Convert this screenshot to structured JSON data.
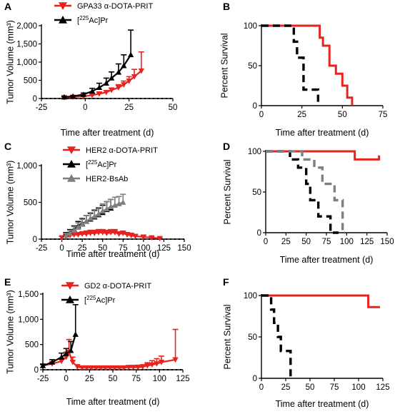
{
  "colors": {
    "red": "#e8231f",
    "black": "#000000",
    "gray": "#7f7f7f"
  },
  "chart_data": [
    {
      "panel": "A",
      "type": "line",
      "ylabel": "Tumor Volume (mm³)",
      "xlabel": "Time after treatment (d)",
      "xlim": [
        -25,
        50
      ],
      "ylim": [
        0,
        2000
      ],
      "xticks": [
        -25,
        0,
        25,
        50
      ],
      "yticks": [
        0,
        500,
        1000,
        1500,
        2000
      ],
      "ytick_labels": [
        "0",
        "500",
        "1,000",
        "1,500",
        "2,000"
      ],
      "baseline_dotted": 0,
      "legend": {
        "position": "top",
        "entries": [
          {
            "label": "GPA33 α-DOTA-PRIT",
            "color": "#e8231f",
            "marker": "triangle-down"
          },
          {
            "label": "[225Ac]Pr",
            "color": "#000000",
            "marker": "triangle-up"
          }
        ]
      },
      "series": [
        {
          "name": "GPA33 α-DOTA-PRIT",
          "color": "#e8231f",
          "marker": "triangle-down",
          "x": [
            -12,
            -7,
            -1,
            4,
            8,
            12,
            15,
            19,
            22,
            25,
            28,
            32
          ],
          "y": [
            30,
            40,
            60,
            90,
            130,
            170,
            230,
            300,
            380,
            480,
            600,
            760
          ],
          "err": [
            10,
            15,
            20,
            30,
            40,
            50,
            60,
            80,
            100,
            120,
            200,
            520
          ]
        },
        {
          "name": "[225Ac]Pr",
          "color": "#000000",
          "marker": "triangle-up",
          "x": [
            -12,
            -7,
            -1,
            4,
            8,
            12,
            15,
            19,
            22,
            26
          ],
          "y": [
            40,
            60,
            110,
            200,
            300,
            420,
            560,
            720,
            900,
            1200
          ],
          "err": [
            15,
            20,
            40,
            80,
            120,
            140,
            170,
            230,
            300,
            680
          ]
        }
      ]
    },
    {
      "panel": "B",
      "type": "step",
      "ylabel": "Percent Survival",
      "xlabel": "Time after treatment (d)",
      "xlim": [
        0,
        75
      ],
      "ylim": [
        0,
        100
      ],
      "xticks": [
        0,
        25,
        50,
        75
      ],
      "yticks": [
        0,
        50,
        100
      ],
      "series": [
        {
          "color": "#e8231f",
          "style": "solid",
          "x": [
            0,
            36,
            38,
            42,
            46,
            50,
            53,
            56
          ],
          "y": [
            100,
            85,
            75,
            50,
            40,
            25,
            10,
            0
          ]
        },
        {
          "color": "#000000",
          "style": "dashed",
          "x": [
            0,
            20,
            22,
            26,
            35
          ],
          "y": [
            100,
            80,
            60,
            20,
            0
          ]
        }
      ]
    },
    {
      "panel": "C",
      "type": "line",
      "ylabel": "Tumor Volume (mm³)",
      "xlabel": "Time after treatment (d)",
      "xlim": [
        -25,
        150
      ],
      "ylim": [
        0,
        1000
      ],
      "xticks": [
        -25,
        0,
        25,
        50,
        75,
        100,
        125,
        150
      ],
      "yticks": [
        0,
        500,
        1000
      ],
      "ytick_labels": [
        "0",
        "500",
        "1,000"
      ],
      "baseline_dotted": 0,
      "legend": {
        "position": "top",
        "entries": [
          {
            "label": "HER2 α-DOTA-PRIT",
            "color": "#e8231f",
            "marker": "triangle-down"
          },
          {
            "label": "[225Ac]Pr",
            "color": "#000000",
            "marker": "triangle-up"
          },
          {
            "label": "HER2-BsAb",
            "color": "#7f7f7f",
            "marker": "triangle-up"
          }
        ]
      },
      "series": [
        {
          "name": "HER2 α-DOTA-PRIT",
          "color": "#e8231f",
          "marker": "triangle-down",
          "x": [
            0,
            5,
            10,
            15,
            20,
            25,
            30,
            35,
            40,
            45,
            50,
            55,
            60,
            65,
            70,
            75,
            80,
            85,
            90,
            100,
            110,
            120
          ],
          "y": [
            20,
            40,
            50,
            60,
            60,
            70,
            70,
            80,
            80,
            90,
            90,
            80,
            90,
            90,
            70,
            80,
            60,
            50,
            40,
            30,
            20,
            10
          ],
          "err": [
            20,
            20,
            30,
            30,
            30,
            30,
            40,
            40,
            40,
            40,
            40,
            40,
            40,
            40,
            30,
            30,
            30,
            30,
            20,
            20,
            10,
            10
          ]
        },
        {
          "name": "[225Ac]Pr",
          "color": "#000000",
          "marker": "triangle-up",
          "x": [
            5,
            10,
            15,
            20,
            25,
            30,
            35,
            40,
            45,
            50,
            55,
            60
          ],
          "y": [
            60,
            90,
            130,
            180,
            210,
            240,
            270,
            300,
            330,
            360,
            400,
            420
          ],
          "err": [
            30,
            40,
            50,
            60,
            70,
            80,
            80,
            90,
            90,
            100,
            110,
            120
          ]
        },
        {
          "name": "HER2-BsAb",
          "color": "#7f7f7f",
          "marker": "triangle-up",
          "x": [
            5,
            10,
            15,
            20,
            25,
            30,
            35,
            40,
            45,
            50,
            55,
            60,
            65,
            70,
            75
          ],
          "y": [
            50,
            80,
            120,
            160,
            200,
            240,
            280,
            310,
            340,
            380,
            410,
            440,
            460,
            480,
            500
          ],
          "err": [
            30,
            40,
            50,
            60,
            70,
            80,
            80,
            90,
            90,
            100,
            100,
            100,
            110,
            100,
            110
          ]
        }
      ]
    },
    {
      "panel": "D",
      "type": "step",
      "ylabel": "Percent Survival",
      "xlabel": "Time after treatment (d)",
      "xlim": [
        0,
        150
      ],
      "ylim": [
        0,
        100
      ],
      "xticks": [
        0,
        25,
        50,
        75,
        100,
        125,
        150
      ],
      "yticks": [
        0,
        50,
        100
      ],
      "series": [
        {
          "color": "#e8231f",
          "style": "solid",
          "x": [
            0,
            110,
            140
          ],
          "y": [
            100,
            90,
            95
          ]
        },
        {
          "color": "#000000",
          "style": "dashed",
          "x": [
            0,
            30,
            40,
            50,
            55,
            65,
            80,
            90
          ],
          "y": [
            100,
            90,
            80,
            60,
            40,
            20,
            0,
            0
          ]
        },
        {
          "color": "#7f7f7f",
          "style": "dashed",
          "x": [
            0,
            45,
            60,
            70,
            85,
            95,
            98
          ],
          "y": [
            100,
            90,
            80,
            60,
            40,
            0,
            0
          ]
        }
      ]
    },
    {
      "panel": "E",
      "type": "line",
      "ylabel": "Tumor Volume (mm³)",
      "xlabel": "Time after treatment (d)",
      "xlim": [
        -25,
        125
      ],
      "ylim": [
        0,
        1500
      ],
      "xticks": [
        -25,
        0,
        25,
        50,
        75,
        100,
        125
      ],
      "yticks": [
        0,
        500,
        1000,
        1500
      ],
      "ytick_labels": [
        "0",
        "500",
        "1,000",
        "1,500"
      ],
      "baseline_dotted": 0,
      "legend": {
        "position": "top",
        "entries": [
          {
            "label": "GD2 α-DOTA-PRIT",
            "color": "#e8231f",
            "marker": "triangle-down"
          },
          {
            "label": "[225Ac]Pr",
            "color": "#000000",
            "marker": "triangle-up"
          }
        ]
      },
      "series": [
        {
          "name": "GD2 α-DOTA-PRIT",
          "color": "#e8231f",
          "marker": "triangle-down",
          "x": [
            -25,
            -15,
            -5,
            0,
            3,
            7,
            12,
            17,
            22,
            27,
            32,
            37,
            42,
            47,
            52,
            57,
            62,
            67,
            72,
            77,
            82,
            87,
            92,
            97,
            102,
            117
          ],
          "y": [
            80,
            120,
            170,
            250,
            350,
            150,
            60,
            40,
            40,
            40,
            40,
            40,
            40,
            40,
            40,
            40,
            40,
            50,
            50,
            50,
            60,
            80,
            100,
            120,
            150,
            200
          ],
          "err": [
            20,
            40,
            60,
            100,
            250,
            100,
            40,
            30,
            30,
            30,
            30,
            30,
            30,
            30,
            30,
            30,
            30,
            30,
            30,
            40,
            40,
            60,
            80,
            100,
            120,
            600
          ]
        },
        {
          "name": "[225Ac]Pr",
          "color": "#000000",
          "marker": "triangle-up",
          "x": [
            -25,
            -15,
            -5,
            0,
            5,
            10
          ],
          "y": [
            80,
            150,
            250,
            320,
            380,
            700
          ],
          "err": [
            30,
            50,
            80,
            100,
            180,
            590
          ]
        }
      ]
    },
    {
      "panel": "F",
      "type": "step",
      "ylabel": "Percent Survival",
      "xlabel": "Time after treatment (d)",
      "xlim": [
        0,
        125
      ],
      "ylim": [
        0,
        100
      ],
      "xticks": [
        0,
        25,
        50,
        75,
        100,
        125
      ],
      "yticks": [
        0,
        50,
        100
      ],
      "series": [
        {
          "color": "#e8231f",
          "style": "solid",
          "x": [
            0,
            110,
            122
          ],
          "y": [
            100,
            86,
            86
          ]
        },
        {
          "color": "#000000",
          "style": "dashed",
          "x": [
            0,
            10,
            13,
            17,
            20,
            30,
            32
          ],
          "y": [
            100,
            83,
            67,
            50,
            33,
            0,
            0
          ]
        }
      ]
    }
  ]
}
